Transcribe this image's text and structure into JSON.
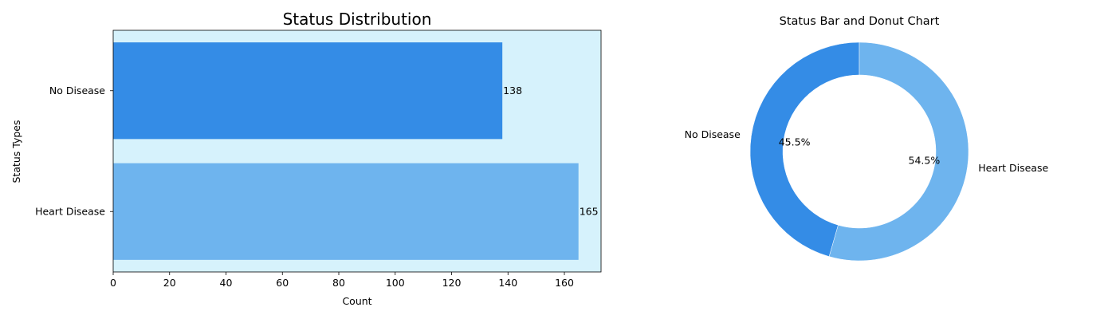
{
  "chart_data": [
    {
      "type": "bar",
      "orientation": "horizontal",
      "title": "Status Distribution",
      "xlabel": "Count",
      "ylabel": "Status Types",
      "categories": [
        "No Disease",
        "Heart Disease"
      ],
      "values": [
        138,
        165
      ],
      "data_labels": [
        "138",
        "165"
      ],
      "colors": [
        "#348ce6",
        "#6eb4ee"
      ],
      "background": "#d6f2fc",
      "xlim": [
        0,
        173
      ],
      "xticks": [
        0,
        20,
        40,
        60,
        80,
        100,
        120,
        140,
        160
      ],
      "grid": false
    },
    {
      "type": "pie",
      "variant": "donut",
      "title": "Status Bar and Donut Chart",
      "labels": [
        "No Disease",
        "Heart Disease"
      ],
      "values": [
        138,
        165
      ],
      "percent_labels": [
        "45.5%",
        "54.5%"
      ],
      "colors": [
        "#348ce6",
        "#6eb4ee"
      ]
    }
  ]
}
